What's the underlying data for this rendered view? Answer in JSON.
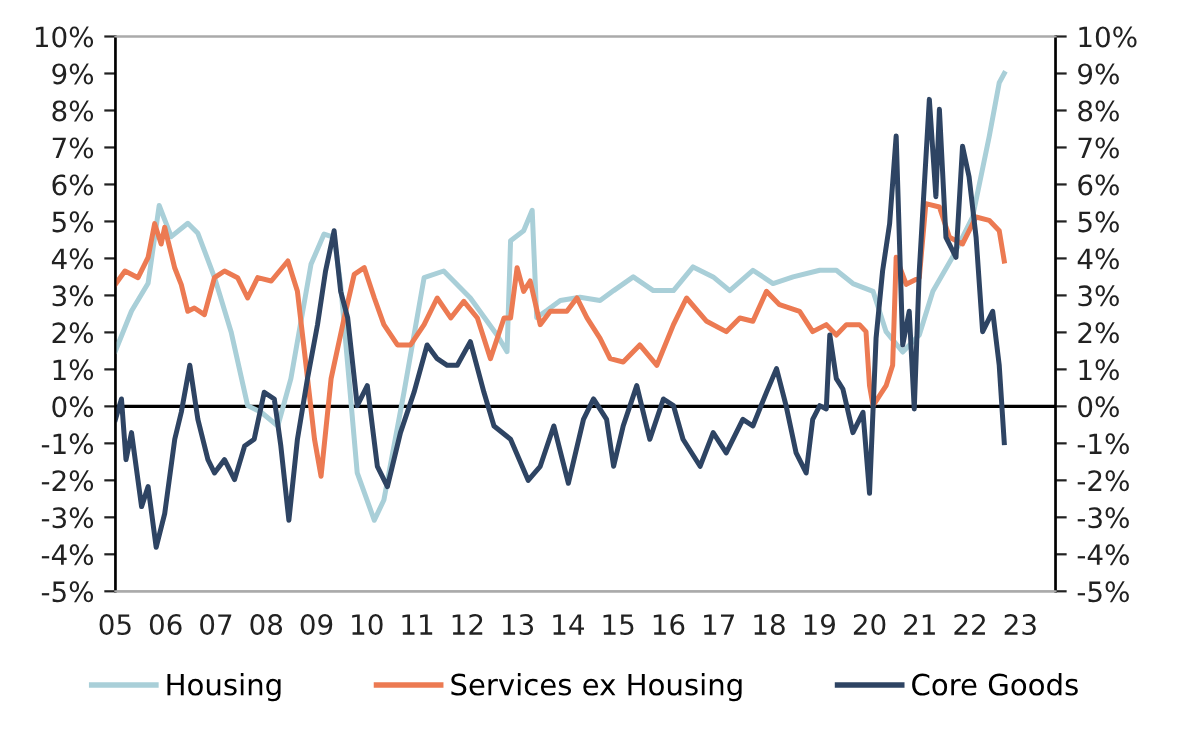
{
  "chart_data": {
    "type": "line",
    "xlim": [
      2005,
      2023.7
    ],
    "xticks": [
      {
        "value": 2005,
        "label": "05"
      },
      {
        "value": 2006,
        "label": "06"
      },
      {
        "value": 2007,
        "label": "07"
      },
      {
        "value": 2008,
        "label": "08"
      },
      {
        "value": 2009,
        "label": "09"
      },
      {
        "value": 2010,
        "label": "10"
      },
      {
        "value": 2011,
        "label": "11"
      },
      {
        "value": 2012,
        "label": "12"
      },
      {
        "value": 2013,
        "label": "13"
      },
      {
        "value": 2014,
        "label": "14"
      },
      {
        "value": 2015,
        "label": "15"
      },
      {
        "value": 2016,
        "label": "16"
      },
      {
        "value": 2017,
        "label": "17"
      },
      {
        "value": 2018,
        "label": "18"
      },
      {
        "value": 2019,
        "label": "19"
      },
      {
        "value": 2020,
        "label": "20"
      },
      {
        "value": 2021,
        "label": "21"
      },
      {
        "value": 2022,
        "label": "22"
      },
      {
        "value": 2023,
        "label": "23"
      }
    ],
    "ylim": [
      -5,
      10
    ],
    "yticks": [
      {
        "value": -5,
        "label": "-5%"
      },
      {
        "value": -4,
        "label": "-4%"
      },
      {
        "value": -3,
        "label": "-3%"
      },
      {
        "value": -2,
        "label": "-2%"
      },
      {
        "value": -1,
        "label": "-1%"
      },
      {
        "value": 0,
        "label": "0%"
      },
      {
        "value": 1,
        "label": "1%"
      },
      {
        "value": 2,
        "label": "2%"
      },
      {
        "value": 3,
        "label": "3%"
      },
      {
        "value": 4,
        "label": "4%"
      },
      {
        "value": 5,
        "label": "5%"
      },
      {
        "value": 6,
        "label": "6%"
      },
      {
        "value": 7,
        "label": "7%"
      },
      {
        "value": 8,
        "label": "8%"
      },
      {
        "value": 9,
        "label": "9%"
      },
      {
        "value": 10,
        "label": "10%"
      }
    ],
    "y2lim": [
      -5,
      10
    ],
    "y2ticks": [
      {
        "value": -5,
        "label": "-5%"
      },
      {
        "value": -4,
        "label": "-4%"
      },
      {
        "value": -3,
        "label": "-3%"
      },
      {
        "value": -2,
        "label": "-2%"
      },
      {
        "value": -1,
        "label": "-1%"
      },
      {
        "value": 0,
        "label": "0%"
      },
      {
        "value": 1,
        "label": "1%"
      },
      {
        "value": 2,
        "label": "2%"
      },
      {
        "value": 3,
        "label": "3%"
      },
      {
        "value": 4,
        "label": "4%"
      },
      {
        "value": 5,
        "label": "5%"
      },
      {
        "value": 6,
        "label": "6%"
      },
      {
        "value": 7,
        "label": "7%"
      },
      {
        "value": 8,
        "label": "8%"
      },
      {
        "value": 9,
        "label": "9%"
      },
      {
        "value": 10,
        "label": "10%"
      }
    ],
    "ref_lines": [
      {
        "axis": "y",
        "value": 0,
        "color": "#000000"
      }
    ],
    "grid": false,
    "legend": "bottom",
    "marker": "none",
    "line_style": "solid",
    "series": [
      {
        "name": "Housing",
        "color": "#a9cfd8",
        "x": [
          2005.0,
          2005.32,
          2005.65,
          2005.87,
          2006.11,
          2006.44,
          2006.64,
          2006.97,
          2007.3,
          2007.63,
          2007.9,
          2008.23,
          2008.49,
          2008.89,
          2009.15,
          2009.35,
          2009.48,
          2009.81,
          2010.15,
          2010.34,
          2010.74,
          2011.14,
          2011.53,
          2012.06,
          2012.59,
          2012.79,
          2012.86,
          2013.12,
          2013.29,
          2013.38,
          2013.58,
          2013.85,
          2014.24,
          2014.64,
          2014.91,
          2015.3,
          2015.7,
          2016.1,
          2016.49,
          2016.89,
          2017.22,
          2017.68,
          2018.08,
          2018.48,
          2019.01,
          2019.34,
          2019.67,
          2020.07,
          2020.33,
          2020.66,
          2020.99,
          2021.26,
          2021.65,
          2022.05,
          2022.38,
          2022.58,
          2022.68
        ],
        "values": [
          1.5,
          2.58,
          3.33,
          5.43,
          4.59,
          4.95,
          4.68,
          3.49,
          2.02,
          0.02,
          -0.16,
          -0.53,
          0.75,
          3.84,
          4.66,
          4.57,
          3.29,
          -1.8,
          -3.08,
          -2.53,
          0.38,
          3.48,
          3.66,
          2.93,
          1.93,
          1.48,
          4.48,
          4.75,
          5.3,
          2.4,
          2.59,
          2.86,
          2.95,
          2.86,
          3.13,
          3.5,
          3.13,
          3.13,
          3.77,
          3.5,
          3.13,
          3.68,
          3.32,
          3.5,
          3.68,
          3.68,
          3.32,
          3.11,
          2.02,
          1.47,
          1.93,
          3.11,
          4.03,
          5.12,
          7.29,
          8.75,
          9.0
        ]
      },
      {
        "name": "Services ex Housing",
        "color": "#ec7a52",
        "x": [
          2005.0,
          2005.19,
          2005.45,
          2005.65,
          2005.78,
          2005.91,
          2005.98,
          2006.18,
          2006.31,
          2006.44,
          2006.57,
          2006.77,
          2006.97,
          2007.17,
          2007.43,
          2007.63,
          2007.83,
          2008.1,
          2008.43,
          2008.62,
          2008.76,
          2008.96,
          2009.09,
          2009.29,
          2009.55,
          2009.75,
          2009.95,
          2010.15,
          2010.34,
          2010.61,
          2010.87,
          2011.14,
          2011.4,
          2011.67,
          2011.93,
          2012.2,
          2012.46,
          2012.73,
          2012.86,
          2012.99,
          2013.12,
          2013.25,
          2013.45,
          2013.65,
          2013.98,
          2014.18,
          2014.38,
          2014.64,
          2014.84,
          2015.1,
          2015.43,
          2015.77,
          2016.1,
          2016.36,
          2016.76,
          2017.15,
          2017.42,
          2017.68,
          2017.95,
          2018.21,
          2018.61,
          2018.87,
          2019.14,
          2019.34,
          2019.54,
          2019.8,
          2019.93,
          2020.0,
          2020.07,
          2020.33,
          2020.46,
          2020.53,
          2020.73,
          2020.99,
          2021.12,
          2021.39,
          2021.59,
          2021.85,
          2022.12,
          2022.38,
          2022.58,
          2022.68
        ],
        "values": [
          3.3,
          3.66,
          3.48,
          4.03,
          4.94,
          4.39,
          4.84,
          3.74,
          3.29,
          2.57,
          2.66,
          2.48,
          3.48,
          3.66,
          3.48,
          2.93,
          3.48,
          3.39,
          3.93,
          3.11,
          1.48,
          -0.89,
          -1.89,
          0.75,
          2.39,
          3.57,
          3.75,
          2.93,
          2.21,
          1.66,
          1.66,
          2.21,
          2.93,
          2.39,
          2.84,
          2.39,
          1.29,
          2.39,
          2.39,
          3.75,
          3.11,
          3.39,
          2.21,
          2.57,
          2.57,
          2.93,
          2.39,
          1.84,
          1.29,
          1.2,
          1.66,
          1.11,
          2.21,
          2.93,
          2.3,
          2.02,
          2.39,
          2.3,
          3.11,
          2.75,
          2.57,
          2.02,
          2.21,
          1.93,
          2.21,
          2.21,
          2.02,
          0.56,
          0.02,
          0.56,
          1.11,
          4.03,
          3.3,
          3.48,
          5.48,
          5.39,
          4.57,
          4.39,
          5.12,
          5.03,
          4.75,
          3.93
        ]
      },
      {
        "name": "Core Goods",
        "color": "#2e4463",
        "x": [
          2005.0,
          2005.12,
          2005.21,
          2005.32,
          2005.52,
          2005.65,
          2005.81,
          2005.98,
          2006.18,
          2006.31,
          2006.48,
          2006.64,
          2006.84,
          2006.97,
          2007.17,
          2007.37,
          2007.57,
          2007.76,
          2007.96,
          2008.16,
          2008.29,
          2008.45,
          2008.62,
          2008.82,
          2009.02,
          2009.18,
          2009.35,
          2009.48,
          2009.62,
          2009.81,
          2010.01,
          2010.21,
          2010.41,
          2010.67,
          2010.94,
          2011.2,
          2011.4,
          2011.6,
          2011.8,
          2012.06,
          2012.33,
          2012.53,
          2012.86,
          2013.21,
          2013.45,
          2013.72,
          2014.01,
          2014.31,
          2014.51,
          2014.77,
          2014.91,
          2015.1,
          2015.37,
          2015.63,
          2015.9,
          2016.1,
          2016.29,
          2016.63,
          2016.89,
          2017.15,
          2017.48,
          2017.68,
          2017.95,
          2018.15,
          2018.34,
          2018.54,
          2018.74,
          2018.87,
          2019.01,
          2019.14,
          2019.21,
          2019.34,
          2019.47,
          2019.67,
          2019.87,
          2020.0,
          2020.13,
          2020.26,
          2020.4,
          2020.53,
          2020.66,
          2020.79,
          2020.89,
          2020.99,
          2021.19,
          2021.32,
          2021.39,
          2021.52,
          2021.72,
          2021.85,
          2021.98,
          2022.12,
          2022.25,
          2022.45,
          2022.58,
          2022.68
        ],
        "values": [
          -0.35,
          0.2,
          -1.44,
          -0.71,
          -2.71,
          -2.17,
          -3.81,
          -2.9,
          -0.89,
          -0.16,
          1.11,
          -0.35,
          -1.44,
          -1.8,
          -1.44,
          -1.98,
          -1.07,
          -0.89,
          0.38,
          0.2,
          -1.07,
          -3.08,
          -0.89,
          0.75,
          2.21,
          3.66,
          4.75,
          3.11,
          2.39,
          0.02,
          0.56,
          -1.62,
          -2.17,
          -0.71,
          0.38,
          1.66,
          1.29,
          1.11,
          1.11,
          1.75,
          0.38,
          -0.53,
          -0.89,
          -2.0,
          -1.62,
          -0.53,
          -2.08,
          -0.35,
          0.2,
          -0.35,
          -1.62,
          -0.53,
          0.56,
          -0.89,
          0.2,
          0.02,
          -0.89,
          -1.62,
          -0.71,
          -1.26,
          -0.35,
          -0.53,
          0.38,
          1.02,
          0.02,
          -1.26,
          -1.8,
          -0.35,
          0.02,
          -0.07,
          1.93,
          0.75,
          0.47,
          -0.71,
          -0.16,
          -2.35,
          1.84,
          3.66,
          4.94,
          7.31,
          1.66,
          2.57,
          -0.07,
          3.66,
          8.3,
          5.67,
          8.03,
          4.57,
          4.03,
          7.03,
          6.21,
          4.57,
          2.02,
          2.57,
          1.11,
          -0.98
        ]
      }
    ]
  }
}
